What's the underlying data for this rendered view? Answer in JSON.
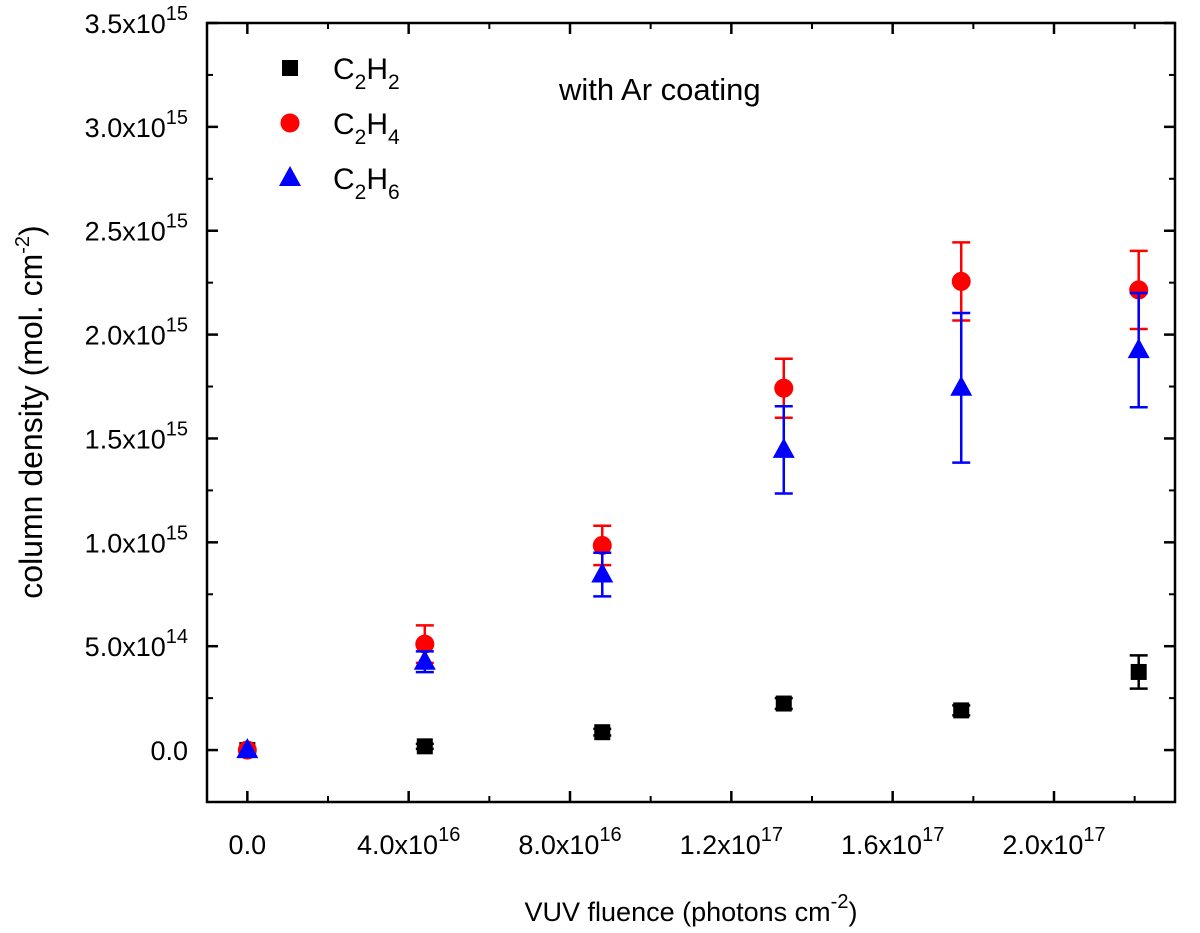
{
  "chart_data": {
    "type": "scatter",
    "title": "",
    "annotation": "with Ar coating",
    "xlabel": "VUV fluence (photons cm-2)",
    "xlabel_parts": {
      "main": "VUV fluence (photons cm",
      "sup": "-2",
      "close": ")"
    },
    "ylabel": "column density (mol. cm-2)",
    "ylabel_parts": {
      "main": "column density (mol. cm",
      "sup": "-2",
      "close": ")"
    },
    "xlim": [
      -1e+16,
      2.3e+17
    ],
    "ylim": [
      -250000000000000.0,
      3500000000000000.0
    ],
    "grid": false,
    "legend_position": "top-left",
    "x_ticks": [
      {
        "value": 0,
        "mantissa": "0.0",
        "exp": ""
      },
      {
        "value": 4e+16,
        "mantissa": "4.0x10",
        "exp": "16"
      },
      {
        "value": 8e+16,
        "mantissa": "8.0x10",
        "exp": "16"
      },
      {
        "value": 1.2e+17,
        "mantissa": "1.2x10",
        "exp": "17"
      },
      {
        "value": 1.6e+17,
        "mantissa": "1.6x10",
        "exp": "17"
      },
      {
        "value": 2e+17,
        "mantissa": "2.0x10",
        "exp": "17"
      }
    ],
    "x_minor_ticks": [
      2e+16,
      6e+16,
      1e+17,
      1.4e+17,
      1.8e+17,
      2.2e+17
    ],
    "y_ticks": [
      {
        "value": 0,
        "mantissa": "0.0",
        "exp": ""
      },
      {
        "value": 500000000000000.0,
        "mantissa": "5.0x10",
        "exp": "14"
      },
      {
        "value": 1000000000000000.0,
        "mantissa": "1.0x10",
        "exp": "15"
      },
      {
        "value": 1500000000000000.0,
        "mantissa": "1.5x10",
        "exp": "15"
      },
      {
        "value": 2000000000000000.0,
        "mantissa": "2.0x10",
        "exp": "15"
      },
      {
        "value": 2500000000000000.0,
        "mantissa": "2.5x10",
        "exp": "15"
      },
      {
        "value": 3000000000000000.0,
        "mantissa": "3.0x10",
        "exp": "15"
      },
      {
        "value": 3500000000000000.0,
        "mantissa": "3.5x10",
        "exp": "15"
      }
    ],
    "y_minor_ticks": [
      -250000000000000.0,
      250000000000000.0,
      750000000000000.0,
      1250000000000000.0,
      1750000000000000.0,
      2250000000000000.0,
      2750000000000000.0,
      3250000000000000.0
    ],
    "series": [
      {
        "name": "C2H2",
        "label_parts": [
          [
            "C",
            ""
          ],
          [
            "2",
            "sub"
          ],
          [
            "H",
            ""
          ],
          [
            "2",
            "sub"
          ]
        ],
        "marker": "square",
        "color": "#000000",
        "x": [
          0,
          4.4e+16,
          8.8e+16,
          1.33e+17,
          1.77e+17,
          2.21e+17
        ],
        "y": [
          0,
          18000000000000.0,
          86000000000000.0,
          224000000000000.0,
          191000000000000.0,
          376000000000000.0
        ],
        "err": [
          0,
          12000000000000.0,
          16000000000000.0,
          26000000000000.0,
          24000000000000.0,
          80000000000000.0
        ]
      },
      {
        "name": "C2H4",
        "label_parts": [
          [
            "C",
            ""
          ],
          [
            "2",
            "sub"
          ],
          [
            "H",
            ""
          ],
          [
            "4",
            "sub"
          ]
        ],
        "marker": "circle",
        "color": "#ff0000",
        "x": [
          0,
          4.4e+16,
          8.8e+16,
          1.33e+17,
          1.77e+17,
          2.21e+17
        ],
        "y": [
          0,
          510000000000000.0,
          985000000000000.0,
          1742000000000000.0,
          2256000000000000.0,
          2215000000000000.0
        ],
        "err": [
          0,
          90000000000000.0,
          95000000000000.0,
          142000000000000.0,
          188000000000000.0,
          188000000000000.0
        ]
      },
      {
        "name": "C2H6",
        "label_parts": [
          [
            "C",
            ""
          ],
          [
            "2",
            "sub"
          ],
          [
            "H",
            ""
          ],
          [
            "6",
            "sub"
          ]
        ],
        "marker": "triangle",
        "color": "#0000ff",
        "x": [
          0,
          4.4e+16,
          8.8e+16,
          1.33e+17,
          1.77e+17,
          2.21e+17
        ],
        "y": [
          0,
          425000000000000.0,
          845000000000000.0,
          1445000000000000.0,
          1744000000000000.0,
          1925000000000000.0
        ],
        "err": [
          0,
          50000000000000.0,
          105000000000000.0,
          210000000000000.0,
          360000000000000.0,
          275000000000000.0
        ]
      }
    ]
  }
}
